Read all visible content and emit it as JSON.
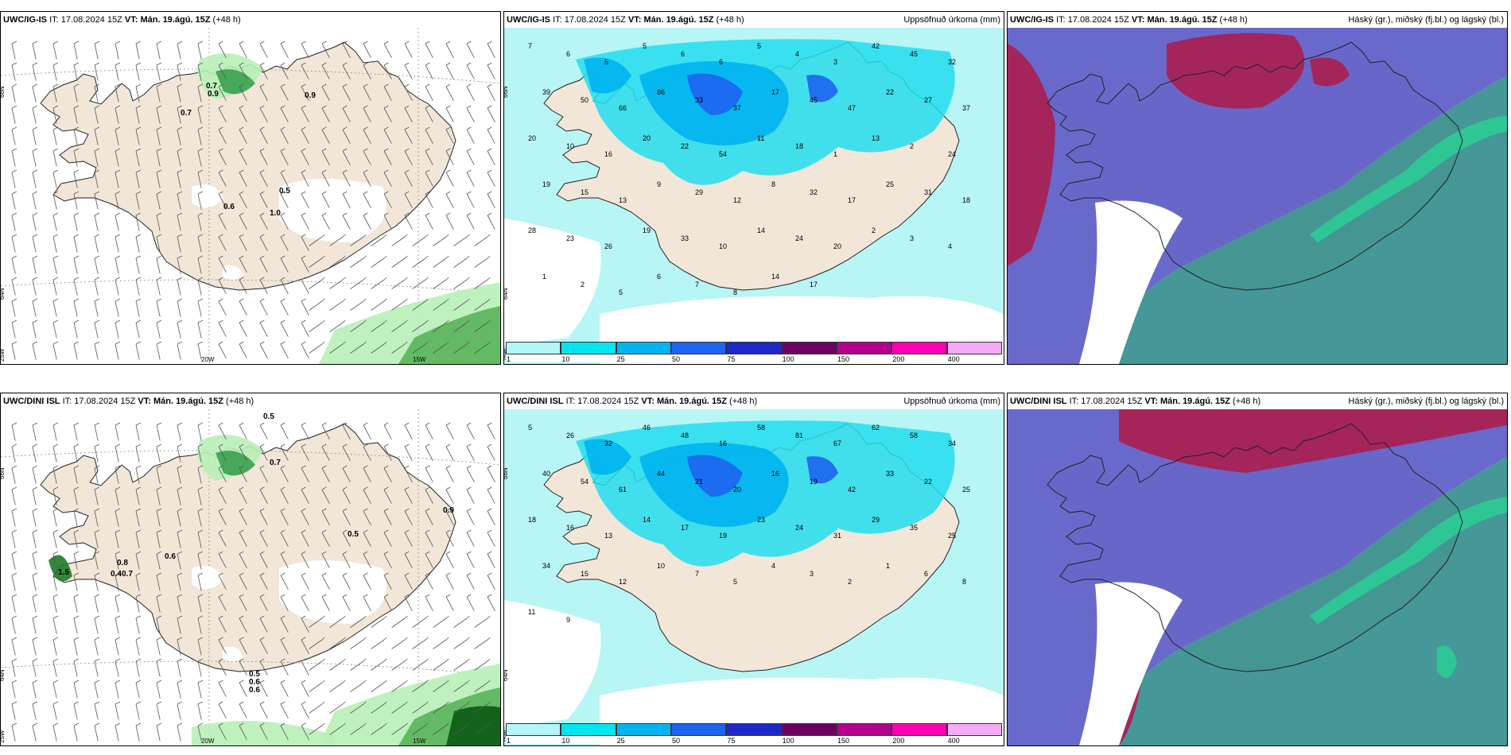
{
  "panels": [
    {
      "model": "UWC/IG-IS",
      "it_label": "IT:",
      "it": "17.08.2024 15Z",
      "vt_label": "VT:",
      "vt": "Mán. 19.ágú. 15Z",
      "lead": "(+48 h)",
      "right": "",
      "kind": "wind"
    },
    {
      "model": "UWC/IG-IS",
      "it_label": "IT:",
      "it": "17.08.2024 15Z",
      "vt_label": "VT:",
      "vt": "Mán. 19.ágú. 15Z",
      "lead": "(+48 h)",
      "right": "Uppsöfnuð úrkoma (mm)",
      "kind": "precip"
    },
    {
      "model": "UWC/IG-IS",
      "it_label": "IT:",
      "it": "17.08.2024 15Z",
      "vt_label": "VT:",
      "vt": "Mán. 19.ágú. 15Z",
      "lead": "(+48 h)",
      "right": "Háský (gr.), miðský (fj.bl.) og lágský (bl.)",
      "kind": "cloud"
    },
    {
      "model": "UWC/DINI ISL",
      "it_label": "IT:",
      "it": "17.08.2024 15Z",
      "vt_label": "VT:",
      "vt": "Mán. 19.ágú. 15Z",
      "lead": "(+48 h)",
      "right": "",
      "kind": "wind"
    },
    {
      "model": "UWC/DINI ISL",
      "it_label": "IT:",
      "it": "17.08.2024 15Z",
      "vt_label": "VT:",
      "vt": "Mán. 19.ágú. 15Z",
      "lead": "(+48 h)",
      "right": "Uppsöfnuð úrkoma (mm)",
      "kind": "precip"
    },
    {
      "model": "UWC/DINI ISL",
      "it_label": "IT:",
      "it": "17.08.2024 15Z",
      "vt_label": "VT:",
      "vt": "Mán. 19.ágú. 15Z",
      "lead": "(+48 h)",
      "right": "Háský (gr.), miðský (fj.bl.) og lágský (bl.)",
      "kind": "cloud"
    }
  ],
  "coords": {
    "lat_top": "66N",
    "lat_bottom": "64N",
    "lon_left": "25W",
    "lon_mid": "20W",
    "lon_right": "15W"
  },
  "legend": {
    "ticks": [
      "1",
      "10",
      "25",
      "50",
      "75",
      "100",
      "150",
      "200",
      "400"
    ],
    "colors": [
      "#b4f5f5",
      "#00e6f0",
      "#00b4f0",
      "#1e64f0",
      "#1e28c8",
      "#6e0064",
      "#b4008c",
      "#ff00b4",
      "#f5aaf5"
    ]
  },
  "colors": {
    "land": "#f2e6d8",
    "precip_bg": "#b8f5f5",
    "precip_mid": "#22ddee",
    "cloud_purple": "#5c5cc8",
    "cloud_red": "#aa1e50",
    "cloud_teal": "#328c8c",
    "cloud_green": "#2ec896",
    "snow_green": "#b8f0b8"
  },
  "ig_wind_labels": [
    "0.7",
    "0.9",
    "0.7",
    "0.9",
    "0.5",
    "0.6",
    "1.0"
  ],
  "dini_wind_labels": [
    "0.5",
    "0.7",
    "0.9",
    "0.6",
    "0.5",
    "1.5",
    "0.8",
    "0.4",
    "0.7",
    "0.5",
    "0.6",
    "0.6"
  ],
  "ig_precip_values": [
    "7",
    "6",
    "5",
    "5",
    "6",
    "6",
    "5",
    "4",
    "3",
    "42",
    "45",
    "32",
    "39",
    "50",
    "66",
    "86",
    "33",
    "37",
    "17",
    "45",
    "47",
    "22",
    "27",
    "37",
    "20",
    "10",
    "16",
    "20",
    "22",
    "54",
    "11",
    "18",
    "1",
    "13",
    "2",
    "24",
    "19",
    "15",
    "13",
    "9",
    "29",
    "12",
    "8",
    "32",
    "17",
    "25",
    "31",
    "18",
    "28",
    "23",
    "26",
    "19",
    "33",
    "10",
    "14",
    "24",
    "20",
    "2",
    "3",
    "4",
    "1",
    "2",
    "5",
    "6",
    "7",
    "8",
    "14",
    "17"
  ],
  "dini_precip_values": [
    "5",
    "26",
    "32",
    "46",
    "48",
    "16",
    "58",
    "81",
    "67",
    "62",
    "58",
    "34",
    "40",
    "54",
    "61",
    "44",
    "21",
    "20",
    "16",
    "19",
    "42",
    "33",
    "22",
    "25",
    "18",
    "16",
    "13",
    "14",
    "17",
    "19",
    "23",
    "24",
    "31",
    "29",
    "35",
    "25",
    "34",
    "15",
    "12",
    "10",
    "7",
    "5",
    "4",
    "3",
    "2",
    "1",
    "6",
    "8",
    "11",
    "9"
  ]
}
